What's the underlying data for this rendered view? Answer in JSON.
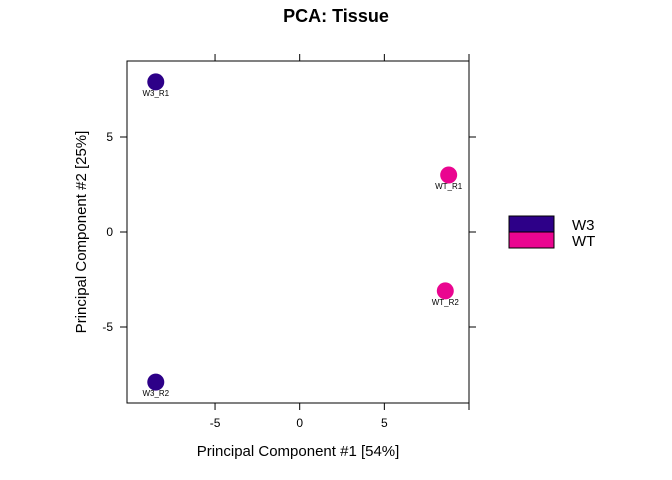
{
  "chart_data": {
    "type": "scatter",
    "title": "PCA: Tissue",
    "xlabel": "Principal Component #1 [54%]",
    "ylabel": "Principal Component #2 [25%]",
    "xlim": [
      -10.2,
      10
    ],
    "ylim": [
      -9,
      9
    ],
    "xticks": [
      -5,
      0,
      5
    ],
    "yticks": [
      -5,
      0,
      5
    ],
    "grid": false,
    "legend_position": "right",
    "series": [
      {
        "name": "W3",
        "color": "#2d0088",
        "points": [
          {
            "x": -8.5,
            "y": 7.9,
            "label": "W3_R1"
          },
          {
            "x": -8.5,
            "y": -7.9,
            "label": "W3_R2"
          }
        ]
      },
      {
        "name": "WT",
        "color": "#ea0590",
        "points": [
          {
            "x": 8.8,
            "y": 3.0,
            "label": "WT_R1"
          },
          {
            "x": 8.6,
            "y": -3.1,
            "label": "WT_R2"
          }
        ]
      }
    ]
  }
}
